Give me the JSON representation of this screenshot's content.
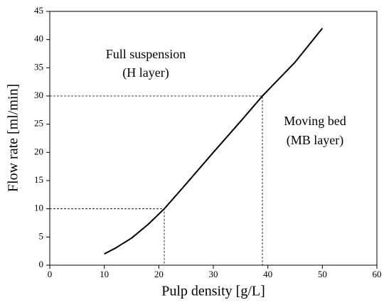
{
  "chart_data": {
    "type": "line",
    "x_label": "Pulp density [g/L]",
    "y_label": "Flow rate [ml/min]",
    "x": [
      10,
      12,
      15,
      18,
      21,
      25,
      30,
      35,
      39,
      45,
      50
    ],
    "values": [
      2,
      3,
      4.8,
      7.2,
      10,
      14.4,
      20,
      25.5,
      30,
      36,
      42
    ],
    "color": "#000000",
    "xlim": [
      0,
      60
    ],
    "xticks": [
      0,
      10,
      20,
      30,
      40,
      50,
      60
    ],
    "ylim": [
      0,
      45
    ],
    "yticks": [
      0,
      5,
      10,
      15,
      20,
      25,
      30,
      35,
      40,
      45
    ],
    "reference_lines": [
      {
        "x": 21,
        "y": 10
      },
      {
        "x": 39,
        "y": 30
      }
    ],
    "annotations": [
      {
        "lines": [
          "Full suspension",
          "(H layer)"
        ]
      },
      {
        "lines": [
          "Moving bed",
          "(MB layer)"
        ]
      }
    ]
  }
}
